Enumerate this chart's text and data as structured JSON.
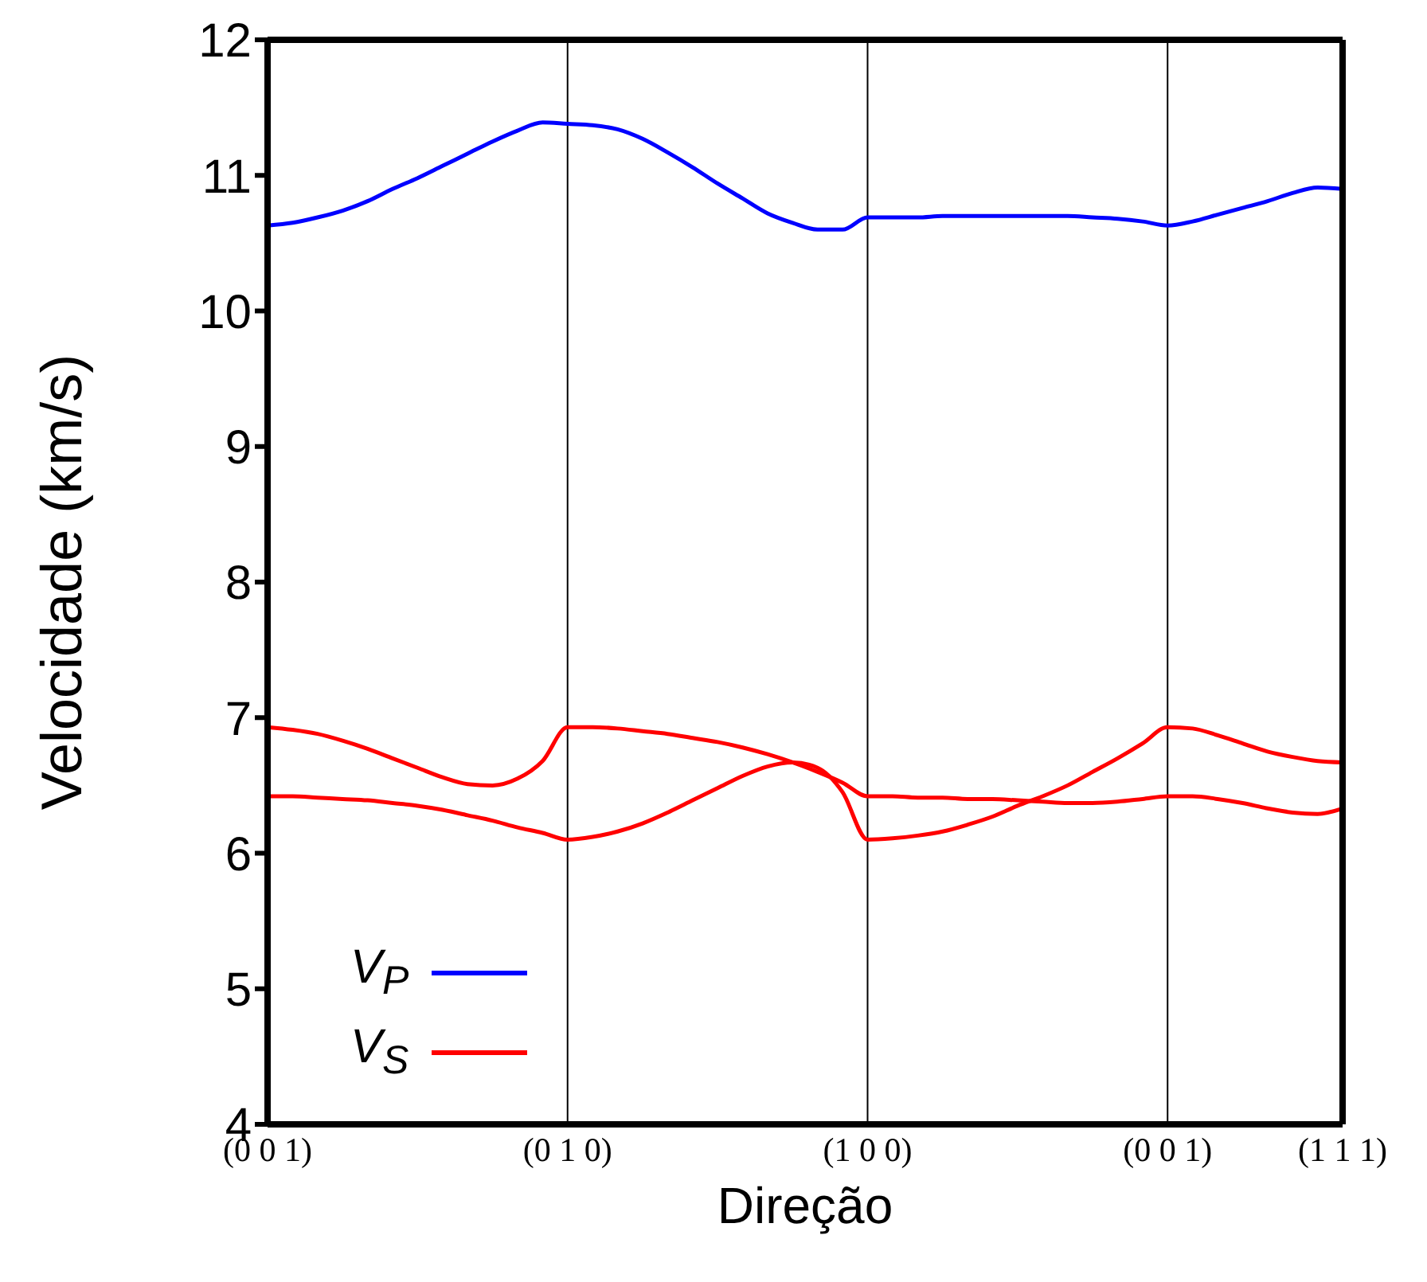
{
  "chart_data": {
    "type": "line",
    "xlabel": "Direção",
    "ylabel": "Velocidade (km/s)",
    "categories": [
      "(0 0 1)",
      null,
      null,
      null,
      null,
      null,
      null,
      null,
      null,
      null,
      null,
      null,
      "(0 1 0)",
      null,
      null,
      null,
      null,
      null,
      null,
      null,
      null,
      null,
      null,
      null,
      "(1 0 0)",
      null,
      null,
      null,
      null,
      null,
      null,
      null,
      null,
      null,
      null,
      null,
      "(0 0 1)",
      null,
      null,
      null,
      null,
      null,
      null,
      "(1 1 1)"
    ],
    "ylim": [
      4,
      12
    ],
    "yticks": [
      4,
      5,
      6,
      7,
      8,
      9,
      10,
      11,
      12
    ],
    "grid": "x",
    "legend": "bottom left",
    "marker": "none",
    "line_style": "solid",
    "series": [
      {
        "name": "V$_{P}$",
        "color": "#0000ff",
        "values": [
          10.63,
          10.65,
          10.69,
          10.74,
          10.81,
          10.9,
          10.98,
          11.07,
          11.16,
          11.25,
          11.33,
          11.39,
          11.38,
          11.37,
          11.34,
          11.27,
          11.17,
          11.06,
          10.94,
          10.83,
          10.72,
          10.65,
          10.6,
          10.6,
          10.69,
          10.69,
          10.69,
          10.7,
          10.7,
          10.7,
          10.7,
          10.7,
          10.7,
          10.69,
          10.68,
          10.66,
          10.63,
          10.66,
          10.71,
          10.76,
          10.81,
          10.87,
          10.91,
          10.9
        ]
      },
      {
        "name": "V$_{S}$",
        "color": "#ff0000",
        "values": [
          6.93,
          6.91,
          6.88,
          6.83,
          6.77,
          6.7,
          6.63,
          6.56,
          6.51,
          6.5,
          6.55,
          6.68,
          6.93,
          6.93,
          6.92,
          6.9,
          6.88,
          6.85,
          6.82,
          6.78,
          6.73,
          6.67,
          6.6,
          6.52,
          6.42,
          6.42,
          6.41,
          6.41,
          6.4,
          6.4,
          6.39,
          6.38,
          6.37,
          6.37,
          6.38,
          6.4,
          6.42,
          6.42,
          6.4,
          6.37,
          6.33,
          6.3,
          6.29,
          6.33
        ]
      },
      {
        "color": "#ff0000",
        "values": [
          6.42,
          6.42,
          6.41,
          6.4,
          6.39,
          6.37,
          6.35,
          6.32,
          6.28,
          6.24,
          6.19,
          6.15,
          6.1,
          6.12,
          6.16,
          6.22,
          6.3,
          6.39,
          6.48,
          6.57,
          6.64,
          6.67,
          6.63,
          6.45,
          6.1,
          6.11,
          6.13,
          6.16,
          6.21,
          6.27,
          6.35,
          6.42,
          6.5,
          6.6,
          6.7,
          6.81,
          6.93,
          6.92,
          6.87,
          6.81,
          6.75,
          6.71,
          6.68,
          6.67
        ]
      }
    ]
  }
}
